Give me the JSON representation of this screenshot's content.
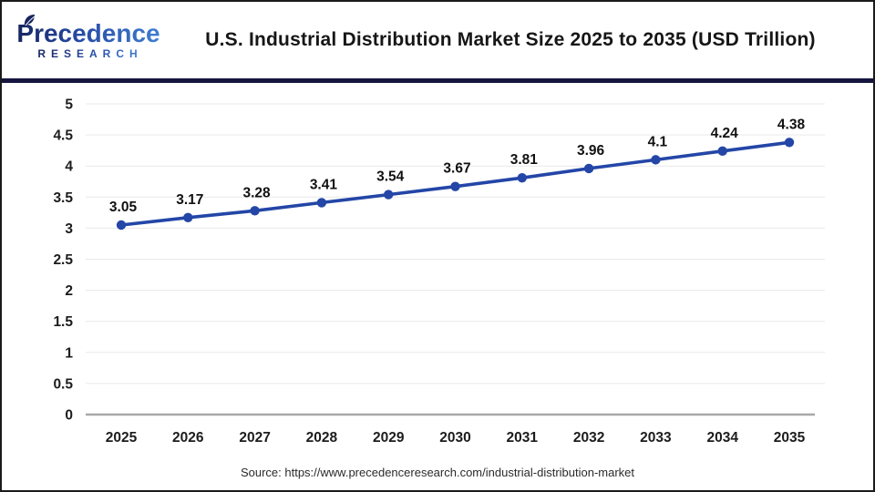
{
  "header": {
    "brand": {
      "line1": "Precedence",
      "line2": "RESEARCH"
    },
    "title": "U.S. Industrial Distribution Market Size 2025 to 2035 (USD Trillion)"
  },
  "chart_data": {
    "type": "line",
    "title": "U.S. Industrial Distribution Market Size 2025 to 2035 (USD Trillion)",
    "categories": [
      "2025",
      "2026",
      "2027",
      "2028",
      "2029",
      "2030",
      "2031",
      "2032",
      "2033",
      "2034",
      "2035"
    ],
    "values": [
      3.05,
      3.17,
      3.28,
      3.41,
      3.54,
      3.67,
      3.81,
      3.96,
      4.1,
      4.24,
      4.38
    ],
    "point_labels": [
      "3.05",
      "3.17",
      "3.28",
      "3.41",
      "3.54",
      "3.67",
      "3.81",
      "3.96",
      "4.1",
      "4.24",
      "4.38"
    ],
    "xlabel": "",
    "ylabel": "",
    "ylim": [
      0,
      5
    ],
    "y_tick_step": 0.5,
    "y_ticks": [
      "0",
      "0.5",
      "1",
      "1.5",
      "2",
      "2.5",
      "3",
      "3.5",
      "4",
      "4.5",
      "5"
    ],
    "grid": "horizontal-only",
    "legend": "none",
    "line_color": "#2346a7",
    "marker": "circle",
    "grid_color": "#e9e9e9",
    "axis_color": "#a8a8a8"
  },
  "footer": {
    "source": "Source: https://www.precedenceresearch.com/industrial-distribution-market"
  }
}
